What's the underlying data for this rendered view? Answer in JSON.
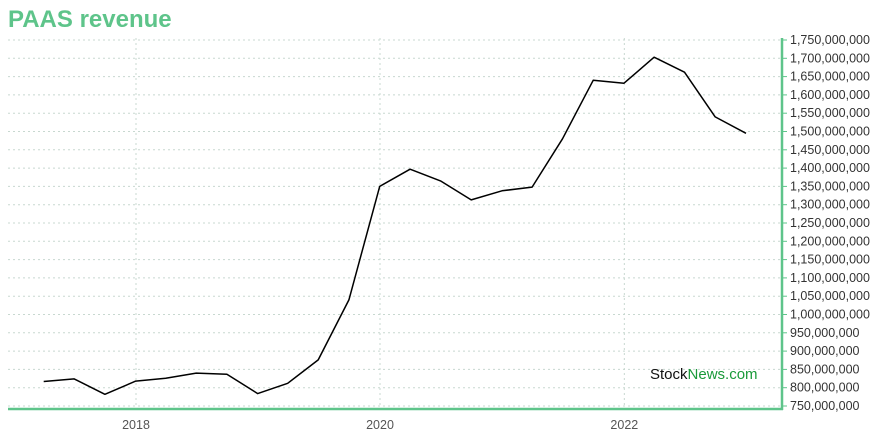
{
  "chart_data": {
    "type": "line",
    "title": "PAAS revenue",
    "xlabel": "",
    "ylabel": "",
    "x_ticks": [
      "2018",
      "2020",
      "2022"
    ],
    "y_ticks": [
      "750,000,000",
      "800,000,000",
      "850,000,000",
      "900,000,000",
      "950,000,000",
      "1,000,000,000",
      "1,050,000,000",
      "1,100,000,000",
      "1,150,000,000",
      "1,200,000,000",
      "1,250,000,000",
      "1,300,000,000",
      "1,350,000,000",
      "1,400,000,000",
      "1,450,000,000",
      "1,500,000,000",
      "1,550,000,000",
      "1,600,000,000",
      "1,650,000,000",
      "1,700,000,000",
      "1,750,000,000"
    ],
    "ylim": [
      750000000,
      1750000000
    ],
    "grid": true,
    "series": [
      {
        "x": [
          "2017-03-31",
          "2017-06-30",
          "2017-09-30",
          "2017-12-31",
          "2018-03-31",
          "2018-06-30",
          "2018-09-30",
          "2018-12-31",
          "2019-03-31",
          "2019-06-30",
          "2019-09-30",
          "2019-12-31",
          "2020-03-31",
          "2020-06-30",
          "2020-09-30",
          "2020-12-31",
          "2021-03-31",
          "2021-06-30",
          "2021-09-30",
          "2021-12-31",
          "2022-03-31",
          "2022-06-30",
          "2022-09-30",
          "2022-12-31"
        ],
        "values": [
          817000000,
          824000000,
          782000000,
          818000000,
          826000000,
          840000000,
          837000000,
          784000000,
          812000000,
          876000000,
          1040000000,
          1350000000,
          1397000000,
          1365000000,
          1313000000,
          1338000000,
          1348000000,
          1480000000,
          1640000000,
          1632000000,
          1703000000,
          1662000000,
          1540000000,
          1495000000
        ]
      }
    ]
  },
  "watermark": {
    "part1": "Stock",
    "part2": "News",
    "part3": ".com"
  },
  "colors": {
    "accent": "#5ec48a",
    "line": "#000000",
    "grid": "#c8d8d0",
    "watermark_green": "#1a9a3a"
  }
}
